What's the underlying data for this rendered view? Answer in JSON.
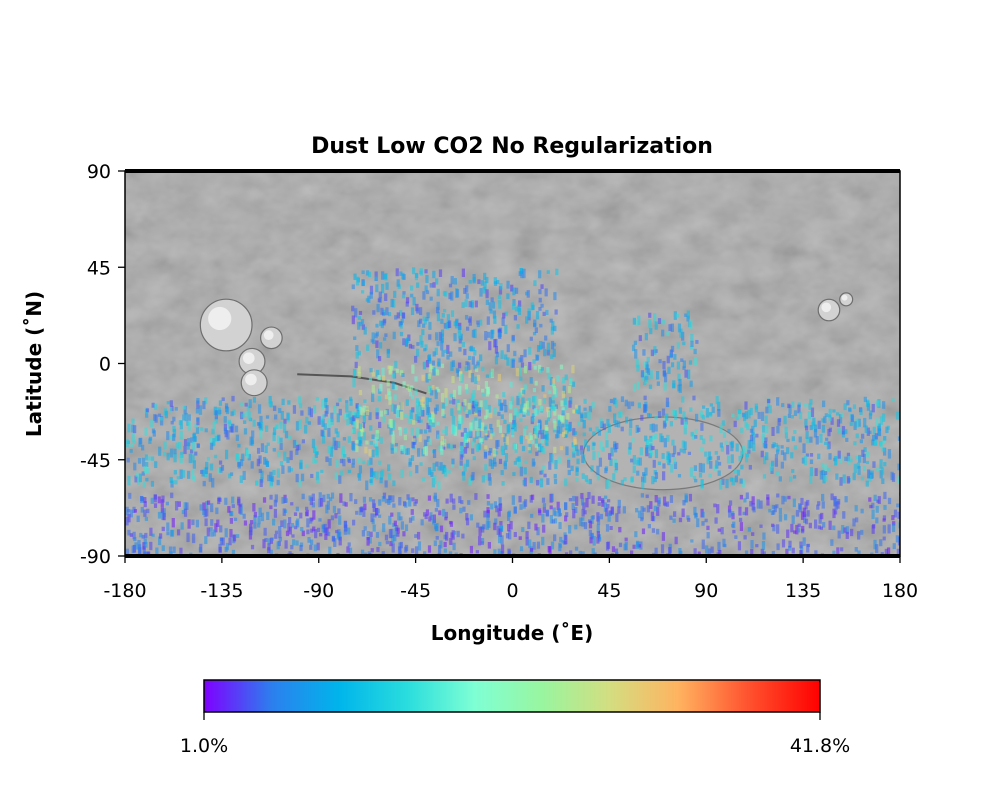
{
  "chart_data": {
    "type": "heatmap",
    "title": "Dust Low CO2 No Regularization",
    "xlabel": "Longitude (˚E)",
    "ylabel": "Latitude (˚N)",
    "xlim": [
      -180,
      180
    ],
    "ylim": [
      -90,
      90
    ],
    "xticks": [
      "-180",
      "-135",
      "-90",
      "-45",
      "0",
      "45",
      "90",
      "135",
      "180"
    ],
    "yticks": [
      "90",
      "45",
      "0",
      "-45",
      "-90"
    ],
    "colorbar": {
      "min_label": "1.0%",
      "max_label": "41.8%",
      "min": 1.0,
      "max": 41.8,
      "orientation": "horizontal",
      "placement": "bottom",
      "colormap": [
        "#7f00ff",
        "#2c7fee",
        "#00b5eb",
        "#2adddd",
        "#7fffd4",
        "#99f59f",
        "#d4dd80",
        "#ffb360",
        "#ff5530",
        "#ff0000"
      ]
    },
    "background": "shaded-relief basemap (grey)",
    "data_regions": [
      {
        "region": "southern mid-latitude band",
        "lon_range": [
          -180,
          180
        ],
        "lat_range": [
          -55,
          -15
        ],
        "typical_value": 10
      },
      {
        "region": "tropical band around Arabia/Meridiani",
        "lon_range": [
          -75,
          30
        ],
        "lat_range": [
          -40,
          0
        ],
        "typical_value": 20
      },
      {
        "region": "northern scattered points",
        "lon_range": [
          -75,
          20
        ],
        "lat_range": [
          0,
          45
        ],
        "typical_value": 8
      },
      {
        "region": "Syrtis/Isidis tongue",
        "lon_range": [
          55,
          85
        ],
        "lat_range": [
          -10,
          25
        ],
        "typical_value": 10
      },
      {
        "region": "southern polar streaks",
        "lon_range": [
          -180,
          180
        ],
        "lat_range": [
          -90,
          -60
        ],
        "typical_value": 5
      }
    ],
    "grid": false
  }
}
